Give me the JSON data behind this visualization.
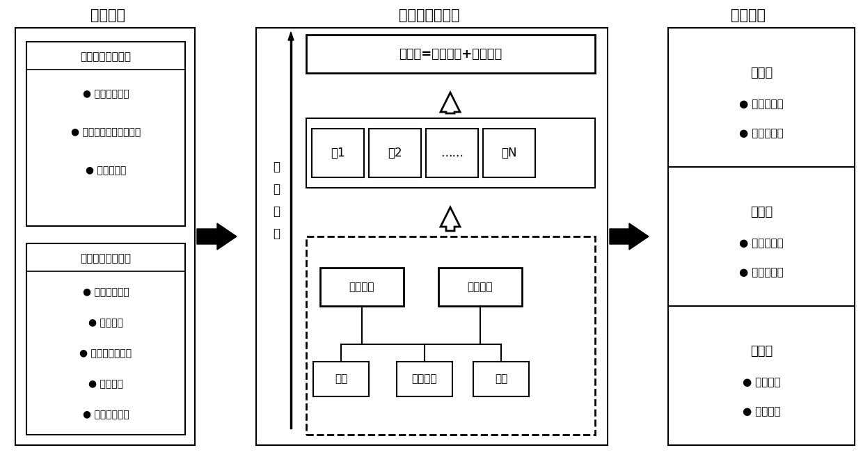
{
  "title_left": "影响因素",
  "title_center": "电采暖需求分析",
  "title_right": "情景设置",
  "left_box1_title": "替代需求影响因素",
  "left_box1_items": [
    "燃煌取暖面积",
    "地区清洁替代规划目标",
    "技术经济性"
  ],
  "left_box2_title": "新增需求影响因素",
  "left_box2_items": [
    "人口发展规模",
    "城镇化率",
    "棚户区改造规模",
    "室外温度",
    "节能建筑比例"
  ],
  "center_top_box": "总需求=替代需求+新增需求",
  "center_provinces": [
    "睦1",
    "睦2",
    "……",
    "睦N"
  ],
  "center_bottom_left": "居民建筑",
  "center_bottom_right": "公共建筑",
  "center_city_boxes": [
    "城市",
    "中小城镇",
    "农村"
  ],
  "vertical_text": [
    "自",
    "下",
    "而",
    "上"
  ],
  "right_box1_title": "高情景",
  "right_box1_items": [
    "高比例替代",
    "大规模新增"
  ],
  "right_box2_title": "中情景",
  "right_box2_items": [
    "中比例替代",
    "中规模新增"
  ],
  "right_box3_title": "低情景",
  "right_box3_items": [
    "适度替代",
    "适度新增"
  ],
  "bg_color": "#ffffff"
}
